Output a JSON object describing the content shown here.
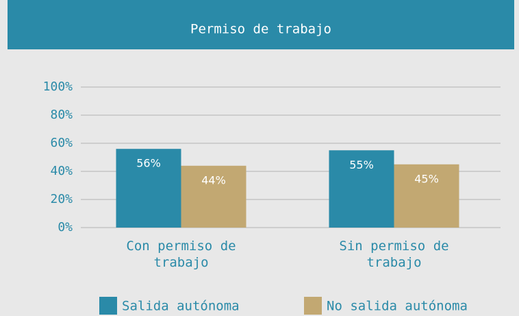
{
  "chart_data": {
    "type": "bar",
    "title": "Permiso de trabajo",
    "categories": [
      "Con permiso de trabajo",
      "Sin permiso de trabajo"
    ],
    "series": [
      {
        "name": "Salida autónoma",
        "color": "#2a8aa8",
        "values": [
          56,
          55
        ],
        "value_labels": [
          "56%",
          "55%"
        ]
      },
      {
        "name": "No salida autónoma",
        "color": "#c2a872",
        "values": [
          44,
          45
        ],
        "value_labels": [
          "44%",
          "45%"
        ]
      }
    ],
    "ylim": [
      0,
      100
    ],
    "yticks": [
      {
        "value": 0,
        "label": "0%"
      },
      {
        "value": 20,
        "label": "20%"
      },
      {
        "value": 40,
        "label": "40%"
      },
      {
        "value": 60,
        "label": "60%"
      },
      {
        "value": 80,
        "label": "80%"
      },
      {
        "value": 100,
        "label": "100%"
      }
    ],
    "grid": true,
    "legend": "bottom"
  }
}
